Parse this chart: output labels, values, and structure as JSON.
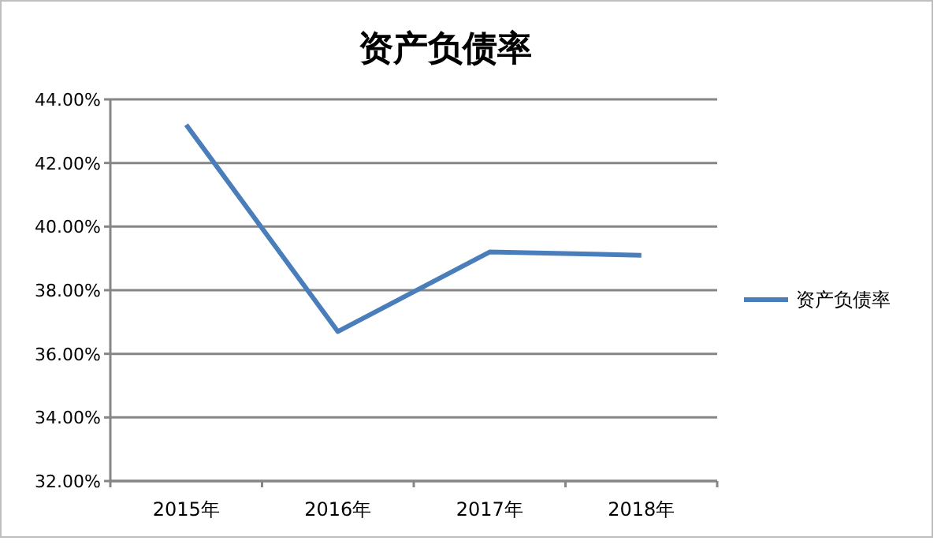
{
  "chart_data": {
    "type": "line",
    "title": "资产负债率",
    "categories": [
      "2015年",
      "2016年",
      "2017年",
      "2018年"
    ],
    "series": [
      {
        "name": "资产负债率",
        "color": "#4a7ebb",
        "values": [
          43.2,
          36.7,
          39.2,
          39.1
        ]
      }
    ],
    "ylim": [
      32,
      44
    ],
    "yticks": [
      {
        "value": 32,
        "label": "32.00%"
      },
      {
        "value": 34,
        "label": "34.00%"
      },
      {
        "value": 36,
        "label": "36.00%"
      },
      {
        "value": 38,
        "label": "38.00%"
      },
      {
        "value": 40,
        "label": "40.00%"
      },
      {
        "value": 42,
        "label": "42.00%"
      },
      {
        "value": 44,
        "label": "44.00%"
      }
    ],
    "grid": "y",
    "legend": "right"
  }
}
